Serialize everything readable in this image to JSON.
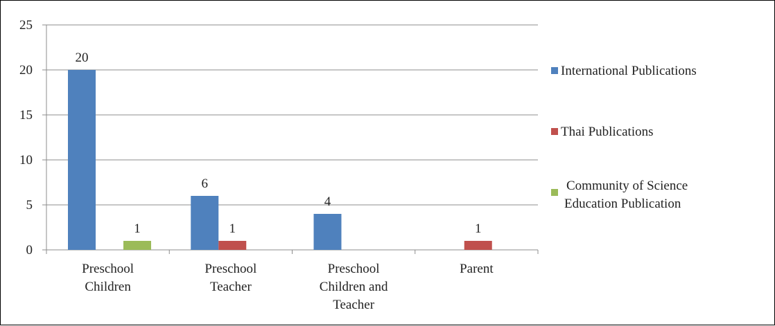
{
  "chart_data": {
    "type": "bar",
    "categories": [
      [
        "Preschool",
        "Children"
      ],
      [
        "Preschool",
        "Teacher"
      ],
      [
        "Preschool",
        "Children and",
        "Teacher"
      ],
      [
        "Parent"
      ]
    ],
    "series": [
      {
        "name": "International Publications",
        "color": "#4F81BD",
        "values": [
          20,
          6,
          4,
          null
        ]
      },
      {
        "name": "Thai Publications",
        "color": "#C0504D",
        "values": [
          null,
          1,
          null,
          1
        ]
      },
      {
        "name": [
          "Community of Science",
          "Education Publication"
        ],
        "color": "#9BBB59",
        "values": [
          1,
          null,
          null,
          null
        ]
      }
    ],
    "data_labels": [
      {
        "category": 0,
        "series": 0,
        "text": "20"
      },
      {
        "category": 0,
        "series": 2,
        "text": "1"
      },
      {
        "category": 1,
        "series": 0,
        "text": "6"
      },
      {
        "category": 1,
        "series": 1,
        "text": "1"
      },
      {
        "category": 2,
        "series": 0,
        "text": "4"
      },
      {
        "category": 3,
        "series": 1,
        "text": "1"
      }
    ],
    "y_ticks": [
      "0",
      "5",
      "10",
      "15",
      "20",
      "25"
    ],
    "ylim": [
      0,
      25
    ],
    "grid": true,
    "legend_position": "right",
    "title": "",
    "xlabel": "",
    "ylabel": ""
  }
}
